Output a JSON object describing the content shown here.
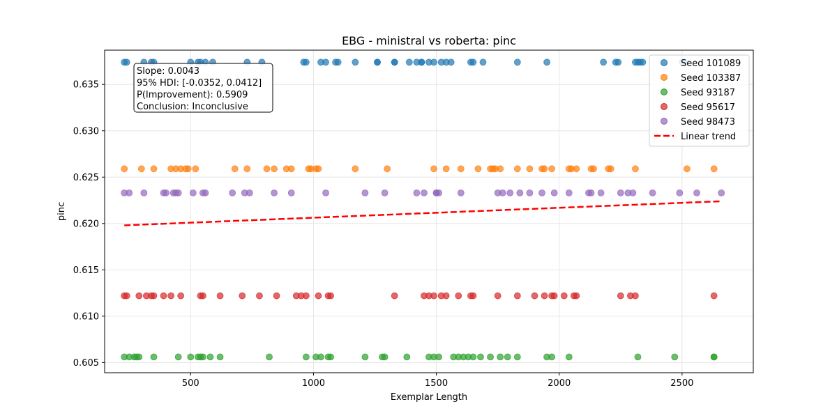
{
  "chart_data": {
    "type": "scatter",
    "title": "EBG - ministral vs roberta: pinc",
    "xlabel": "Exemplar Length",
    "ylabel": "pinc",
    "xlim": [
      150,
      2790
    ],
    "ylim": [
      0.6039,
      0.6387
    ],
    "xticks": [
      500,
      1000,
      1500,
      2000,
      2500
    ],
    "yticks": [
      0.605,
      0.61,
      0.615,
      0.62,
      0.625,
      0.63,
      0.635
    ],
    "ytick_labels": [
      "0.605",
      "0.610",
      "0.615",
      "0.620",
      "0.625",
      "0.630",
      "0.635"
    ],
    "grid": true,
    "legend_position": "top-right",
    "series": [
      {
        "name": "Seed 101089",
        "color": "#1f77b4",
        "y": 0.6374,
        "x": [
          230,
          240,
          310,
          340,
          350,
          500,
          530,
          540,
          560,
          590,
          730,
          790,
          960,
          970,
          1030,
          1050,
          1090,
          1100,
          1170,
          1260,
          1260,
          1330,
          1330,
          1390,
          1420,
          1440,
          1440,
          1470,
          1490,
          1520,
          1540,
          1560,
          1640,
          1650,
          1690,
          1830,
          1950,
          2180,
          2230,
          2240,
          2310,
          2320,
          2330,
          2340,
          2500,
          2510
        ]
      },
      {
        "name": "Seed 103387",
        "color": "#ff7f0e",
        "y": 0.6259,
        "x": [
          230,
          300,
          350,
          420,
          440,
          460,
          480,
          490,
          520,
          680,
          730,
          810,
          840,
          890,
          910,
          980,
          990,
          1010,
          1020,
          1170,
          1300,
          1490,
          1540,
          1600,
          1670,
          1720,
          1730,
          1740,
          1760,
          1830,
          1880,
          1930,
          1940,
          1970,
          2040,
          2050,
          2070,
          2130,
          2140,
          2200,
          2210,
          2310,
          2520,
          2630
        ]
      },
      {
        "name": "Seed 93187",
        "color": "#2ca02c",
        "y": 0.6056,
        "x": [
          230,
          250,
          270,
          280,
          290,
          350,
          450,
          500,
          530,
          540,
          550,
          580,
          620,
          820,
          970,
          1010,
          1030,
          1060,
          1070,
          1210,
          1280,
          1290,
          1380,
          1470,
          1490,
          1510,
          1570,
          1590,
          1610,
          1630,
          1650,
          1680,
          1720,
          1760,
          1790,
          1830,
          1950,
          1970,
          2040,
          2320,
          2470,
          2630,
          2630
        ]
      },
      {
        "name": "Seed 95617",
        "color": "#d62728",
        "y": 0.6122,
        "x": [
          230,
          240,
          290,
          320,
          340,
          350,
          390,
          420,
          460,
          540,
          550,
          620,
          710,
          780,
          850,
          930,
          950,
          970,
          1020,
          1060,
          1070,
          1330,
          1450,
          1470,
          1490,
          1520,
          1540,
          1590,
          1640,
          1650,
          1750,
          1830,
          1900,
          1940,
          1970,
          1980,
          2020,
          2060,
          2070,
          2250,
          2290,
          2310,
          2630
        ]
      },
      {
        "name": "Seed 98473",
        "color": "#9467bd",
        "y": 0.6233,
        "x": [
          230,
          250,
          310,
          390,
          400,
          430,
          440,
          450,
          510,
          550,
          560,
          670,
          720,
          740,
          840,
          910,
          1050,
          1210,
          1290,
          1420,
          1450,
          1500,
          1500,
          1510,
          1600,
          1750,
          1770,
          1800,
          1840,
          1880,
          1930,
          1980,
          2040,
          2120,
          2130,
          2170,
          2250,
          2280,
          2300,
          2380,
          2490,
          2560,
          2660
        ]
      }
    ],
    "trend": {
      "name": "Linear trend",
      "color": "#ff0000",
      "x": [
        230,
        2660
      ],
      "y": [
        0.6198,
        0.6224
      ]
    },
    "annotation": {
      "lines": [
        "Slope: 0.0043",
        "95% HDI: [-0.0352, 0.0412]",
        "P(Improvement): 0.5909",
        "Conclusion: Inconclusive"
      ]
    }
  }
}
